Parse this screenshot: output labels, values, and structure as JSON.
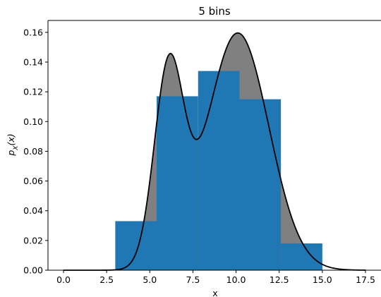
{
  "chart_data": {
    "type": "bar",
    "title": "5 bins",
    "xlabel": "x",
    "ylabel": "p_X(x)",
    "xlim": [
      -0.9,
      18.4
    ],
    "ylim": [
      0.0,
      0.168
    ],
    "xticks": [
      0.0,
      2.5,
      5.0,
      7.5,
      10.0,
      12.5,
      15.0,
      17.5
    ],
    "xtick_labels": [
      "0.0",
      "2.5",
      "5.0",
      "7.5",
      "10.0",
      "12.5",
      "15.0",
      "17.5"
    ],
    "yticks": [
      0.0,
      0.02,
      0.04,
      0.06,
      0.08,
      0.1,
      0.12,
      0.14,
      0.16
    ],
    "ytick_labels": [
      "0.00",
      "0.02",
      "0.04",
      "0.06",
      "0.08",
      "0.10",
      "0.12",
      "0.14",
      "0.16"
    ],
    "grid": false,
    "colors": {
      "bars": "#1f77b4",
      "fill_between": "#808080",
      "curve": "#000000",
      "axes": "#000000"
    },
    "histogram": {
      "bin_edges": [
        3.0,
        5.4,
        7.8,
        10.2,
        12.6,
        15.0
      ],
      "densities": [
        0.033,
        0.117,
        0.134,
        0.115,
        0.018
      ]
    },
    "density_curve": {
      "x_range": [
        0.0,
        17.5
      ],
      "components": [
        {
          "weight": 0.28,
          "mean": 6.1,
          "sd": 0.85
        },
        {
          "weight": 0.72,
          "mean": 10.1,
          "sd": 1.8
        }
      ]
    }
  }
}
